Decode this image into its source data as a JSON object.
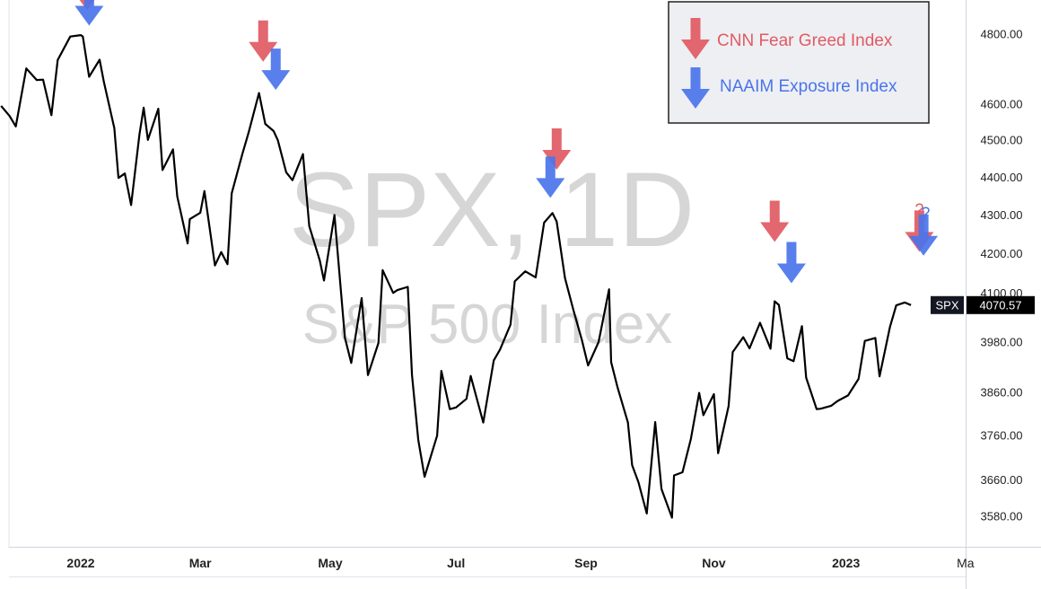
{
  "chart_data": {
    "type": "line",
    "title": "",
    "watermark": {
      "symbol": "SPX, 1D",
      "name": "S&P 500 Index"
    },
    "scale": "log",
    "ylim": [
      3540,
      4900
    ],
    "y_ticks": [
      "4800.00",
      "4600.00",
      "4500.00",
      "4400.00",
      "4300.00",
      "4200.00",
      "4100.00",
      "3980.00",
      "3860.00",
      "3760.00",
      "3660.00",
      "3580.00"
    ],
    "x_ticks": [
      {
        "label": "2022",
        "date": "2022-01-03",
        "bold": true
      },
      {
        "label": "Mar",
        "date": "2022-03-01",
        "bold": true
      },
      {
        "label": "May",
        "date": "2022-05-02",
        "bold": true
      },
      {
        "label": "Jul",
        "date": "2022-07-01",
        "bold": true
      },
      {
        "label": "Sep",
        "date": "2022-09-01",
        "bold": true
      },
      {
        "label": "Nov",
        "date": "2022-11-01",
        "bold": true
      },
      {
        "label": "2023",
        "date": "2023-01-03",
        "bold": true
      },
      {
        "label": "Ma",
        "date": "2023-03-01",
        "bold": false
      }
    ],
    "x_range": [
      "2021-11-26",
      "2023-03-04"
    ],
    "series": [
      {
        "name": "SPX",
        "color": "#000000",
        "points": [
          [
            "2021-11-26",
            4595
          ],
          [
            "2021-11-30",
            4567
          ],
          [
            "2021-12-03",
            4538
          ],
          [
            "2021-12-08",
            4701
          ],
          [
            "2021-12-13",
            4668
          ],
          [
            "2021-12-16",
            4669
          ],
          [
            "2021-12-20",
            4569
          ],
          [
            "2021-12-23",
            4725
          ],
          [
            "2021-12-29",
            4793
          ],
          [
            "2022-01-03",
            4797
          ],
          [
            "2022-01-04",
            4793
          ],
          [
            "2022-01-07",
            4677
          ],
          [
            "2022-01-12",
            4726
          ],
          [
            "2022-01-14",
            4663
          ],
          [
            "2022-01-19",
            4533
          ],
          [
            "2022-01-21",
            4398
          ],
          [
            "2022-01-24",
            4410
          ],
          [
            "2022-01-27",
            4326
          ],
          [
            "2022-01-31",
            4516
          ],
          [
            "2022-02-02",
            4590
          ],
          [
            "2022-02-04",
            4501
          ],
          [
            "2022-02-09",
            4587
          ],
          [
            "2022-02-11",
            4419
          ],
          [
            "2022-02-16",
            4475
          ],
          [
            "2022-02-18",
            4349
          ],
          [
            "2022-02-23",
            4226
          ],
          [
            "2022-02-24",
            4289
          ],
          [
            "2022-03-01",
            4306
          ],
          [
            "2022-03-03",
            4363
          ],
          [
            "2022-03-08",
            4170
          ],
          [
            "2022-03-11",
            4204
          ],
          [
            "2022-03-14",
            4173
          ],
          [
            "2022-03-16",
            4357
          ],
          [
            "2022-03-21",
            4461
          ],
          [
            "2022-03-24",
            4520
          ],
          [
            "2022-03-29",
            4631
          ],
          [
            "2022-04-01",
            4545
          ],
          [
            "2022-04-05",
            4525
          ],
          [
            "2022-04-07",
            4500
          ],
          [
            "2022-04-11",
            4413
          ],
          [
            "2022-04-14",
            4392
          ],
          [
            "2022-04-19",
            4462
          ],
          [
            "2022-04-22",
            4271
          ],
          [
            "2022-04-27",
            4183
          ],
          [
            "2022-04-29",
            4132
          ],
          [
            "2022-05-04",
            4300
          ],
          [
            "2022-05-09",
            3991
          ],
          [
            "2022-05-12",
            3930
          ],
          [
            "2022-05-17",
            4088
          ],
          [
            "2022-05-20",
            3901
          ],
          [
            "2022-05-25",
            3978
          ],
          [
            "2022-05-27",
            4158
          ],
          [
            "2022-06-01",
            4101
          ],
          [
            "2022-06-03",
            4108
          ],
          [
            "2022-06-08",
            4116
          ],
          [
            "2022-06-10",
            3901
          ],
          [
            "2022-06-13",
            3750
          ],
          [
            "2022-06-16",
            3667
          ],
          [
            "2022-06-22",
            3760
          ],
          [
            "2022-06-24",
            3911
          ],
          [
            "2022-06-28",
            3821
          ],
          [
            "2022-07-01",
            3825
          ],
          [
            "2022-07-06",
            3845
          ],
          [
            "2022-07-08",
            3899
          ],
          [
            "2022-07-14",
            3790
          ],
          [
            "2022-07-19",
            3936
          ],
          [
            "2022-07-22",
            3962
          ],
          [
            "2022-07-27",
            4023
          ],
          [
            "2022-07-29",
            4130
          ],
          [
            "2022-08-03",
            4155
          ],
          [
            "2022-08-08",
            4140
          ],
          [
            "2022-08-12",
            4280
          ],
          [
            "2022-08-16",
            4305
          ],
          [
            "2022-08-18",
            4283
          ],
          [
            "2022-08-22",
            4138
          ],
          [
            "2022-08-26",
            4058
          ],
          [
            "2022-08-30",
            3986
          ],
          [
            "2022-09-02",
            3924
          ],
          [
            "2022-09-07",
            3980
          ],
          [
            "2022-09-12",
            4110
          ],
          [
            "2022-09-13",
            3932
          ],
          [
            "2022-09-16",
            3873
          ],
          [
            "2022-09-21",
            3790
          ],
          [
            "2022-09-23",
            3693
          ],
          [
            "2022-09-26",
            3655
          ],
          [
            "2022-09-30",
            3586
          ],
          [
            "2022-10-04",
            3791
          ],
          [
            "2022-10-07",
            3640
          ],
          [
            "2022-10-12",
            3577
          ],
          [
            "2022-10-13",
            3670
          ],
          [
            "2022-10-17",
            3677
          ],
          [
            "2022-10-21",
            3752
          ],
          [
            "2022-10-25",
            3859
          ],
          [
            "2022-10-27",
            3807
          ],
          [
            "2022-11-01",
            3856
          ],
          [
            "2022-11-03",
            3720
          ],
          [
            "2022-11-08",
            3828
          ],
          [
            "2022-11-10",
            3956
          ],
          [
            "2022-11-15",
            3992
          ],
          [
            "2022-11-18",
            3965
          ],
          [
            "2022-11-23",
            4027
          ],
          [
            "2022-11-28",
            3964
          ],
          [
            "2022-11-30",
            4080
          ],
          [
            "2022-12-02",
            4071
          ],
          [
            "2022-12-06",
            3941
          ],
          [
            "2022-12-09",
            3934
          ],
          [
            "2022-12-13",
            4019
          ],
          [
            "2022-12-15",
            3895
          ],
          [
            "2022-12-20",
            3821
          ],
          [
            "2022-12-22",
            3822
          ],
          [
            "2022-12-27",
            3829
          ],
          [
            "2022-12-30",
            3840
          ],
          [
            "2023-01-04",
            3853
          ],
          [
            "2023-01-09",
            3892
          ],
          [
            "2023-01-12",
            3983
          ],
          [
            "2023-01-17",
            3990
          ],
          [
            "2023-01-19",
            3898
          ],
          [
            "2023-01-24",
            4017
          ],
          [
            "2023-01-27",
            4070
          ],
          [
            "2023-01-31",
            4077
          ],
          [
            "2023-02-03",
            4070.57
          ]
        ]
      }
    ],
    "last_value": {
      "label": "SPX",
      "value": "4070.57"
    },
    "annotations": {
      "red_arrows": [
        {
          "date": "2022-01-06",
          "value": 4870
        },
        {
          "date": "2022-03-31",
          "value": 4720
        },
        {
          "date": "2022-08-18",
          "value": 4420
        },
        {
          "date": "2022-11-30",
          "value": 4230
        },
        {
          "date": "2023-02-07",
          "value": 4205
        }
      ],
      "blue_arrows": [
        {
          "date": "2022-01-07",
          "value": 4825
        },
        {
          "date": "2022-04-06",
          "value": 4640
        },
        {
          "date": "2022-08-15",
          "value": 4345
        },
        {
          "date": "2022-12-08",
          "value": 4125
        },
        {
          "date": "2023-02-09",
          "value": 4195
        }
      ],
      "question_marks": [
        {
          "text": "?",
          "color": "#e15a62",
          "date": "2023-02-07",
          "value": 4300
        },
        {
          "text": "?",
          "color": "#4a74ea",
          "date": "2023-02-10",
          "value": 4290
        }
      ]
    },
    "legend": {
      "placement": "top-right",
      "items": [
        {
          "label": "CNN Fear Greed Index",
          "color": "#e15a62"
        },
        {
          "label": "NAAIM Exposure Index",
          "color": "#4a74ea"
        }
      ]
    }
  }
}
